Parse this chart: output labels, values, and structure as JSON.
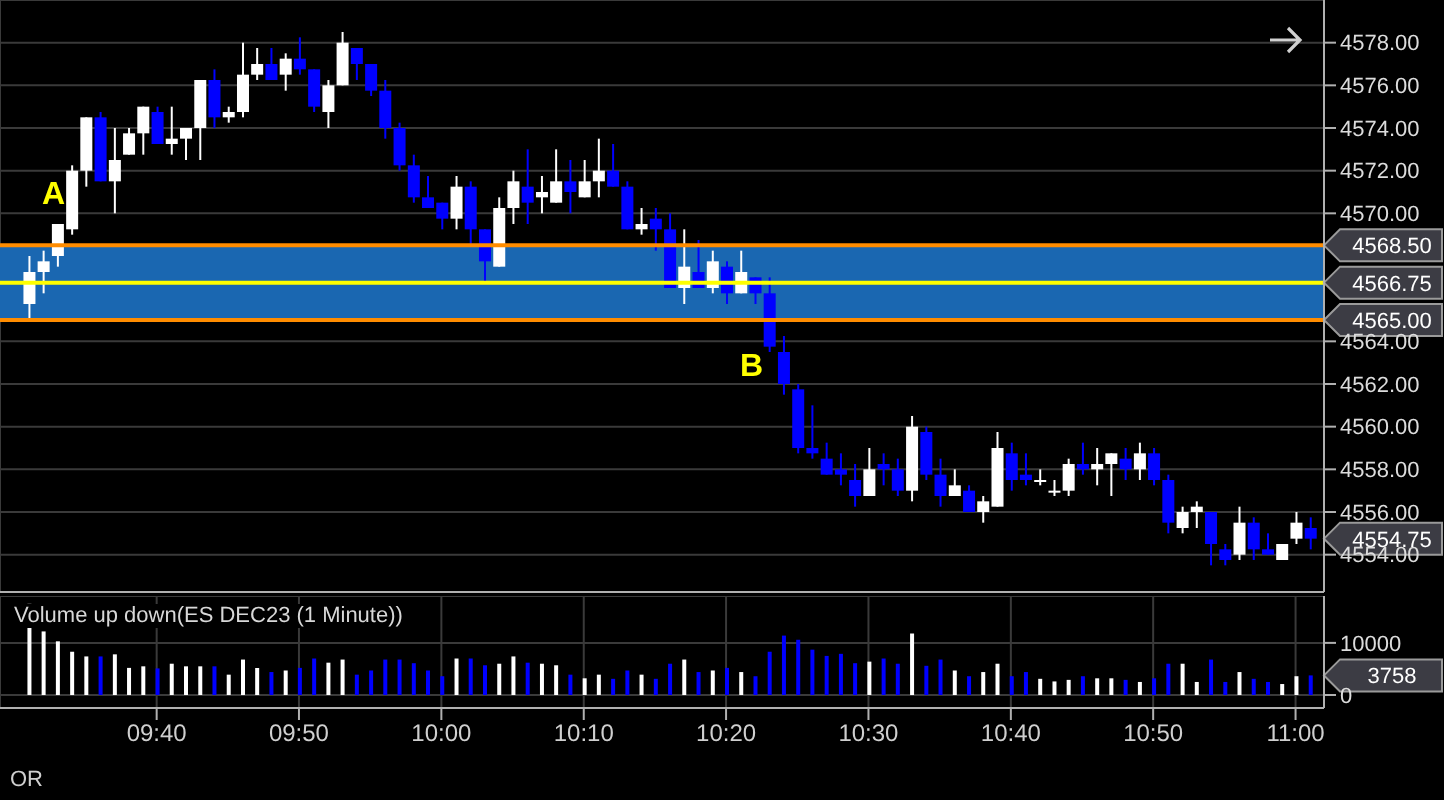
{
  "chart_data": [
    {
      "type": "candlestick",
      "tick_labels": "y",
      "grid": true,
      "x": [
        9.5167,
        9.5333,
        9.55,
        9.5667,
        9.5833,
        9.6,
        9.6167,
        9.6333,
        9.65,
        9.6667,
        9.6833,
        9.7,
        9.7167,
        9.7333,
        9.75,
        9.7667,
        9.7833,
        9.8,
        9.8167,
        9.8333,
        9.85,
        9.8667,
        9.8833,
        9.9,
        9.9167,
        9.9333,
        9.95,
        9.9667,
        9.9833,
        10,
        10.0167,
        10.0333,
        10.05,
        10.0667,
        10.0833,
        10.1,
        10.1167,
        10.1333,
        10.15,
        10.1667,
        10.1833,
        10.2,
        10.2167,
        10.2333,
        10.25,
        10.2667,
        10.2833,
        10.3,
        10.3167,
        10.3333,
        10.35,
        10.3667,
        10.3833,
        10.4,
        10.4167,
        10.4333,
        10.45,
        10.4667,
        10.4833,
        10.5,
        10.5167,
        10.5333,
        10.55,
        10.5667,
        10.5833,
        10.6,
        10.6167,
        10.6333,
        10.65,
        10.6667,
        10.6833,
        10.7,
        10.7167,
        10.7333,
        10.75,
        10.7667,
        10.7833,
        10.8,
        10.8167,
        10.8333,
        10.85,
        10.8667,
        10.8833,
        10.9,
        10.9167,
        10.9333,
        10.95,
        10.9667,
        10.9833,
        11,
        11.0167
      ],
      "ohlc": [
        [
          4565.75,
          4568,
          4565,
          4567.25
        ],
        [
          4567.25,
          4568.25,
          4566.25,
          4567.75
        ],
        [
          4568,
          4569.5,
          4567.5,
          4569.5
        ],
        [
          4569.25,
          4572.25,
          4569,
          4572
        ],
        [
          4572,
          4574.5,
          4571.25,
          4574.5
        ],
        [
          4574.5,
          4574.75,
          4571.5,
          4571.5
        ],
        [
          4571.5,
          4574,
          4570,
          4572.5
        ],
        [
          4572.75,
          4574,
          4572.75,
          4573.75
        ],
        [
          4573.75,
          4575,
          4572.75,
          4575
        ],
        [
          4574.75,
          4575,
          4573.25,
          4573.25
        ],
        [
          4573.25,
          4575,
          4572.75,
          4573.5
        ],
        [
          4573.5,
          4574,
          4572.5,
          4574
        ],
        [
          4574,
          4576.25,
          4572.5,
          4576.25
        ],
        [
          4576.25,
          4576.75,
          4574,
          4574.5
        ],
        [
          4574.5,
          4575,
          4574.25,
          4574.75
        ],
        [
          4574.75,
          4578,
          4574.5,
          4576.5
        ],
        [
          4576.5,
          4577.75,
          4576.25,
          4577
        ],
        [
          4577,
          4577.75,
          4576.25,
          4576.25
        ],
        [
          4576.5,
          4577.5,
          4575.75,
          4577.25
        ],
        [
          4577.25,
          4578.25,
          4576.5,
          4576.75
        ],
        [
          4576.75,
          4576.75,
          4574.75,
          4575
        ],
        [
          4574.75,
          4576.25,
          4574,
          4576
        ],
        [
          4576,
          4578.5,
          4576,
          4578
        ],
        [
          4577.75,
          4577.75,
          4576.25,
          4577
        ],
        [
          4577,
          4577,
          4575.5,
          4575.75
        ],
        [
          4575.75,
          4576.25,
          4573.5,
          4574
        ],
        [
          4574,
          4574.25,
          4572,
          4572.25
        ],
        [
          4572.25,
          4572.75,
          4570.5,
          4570.75
        ],
        [
          4570.75,
          4571.75,
          4570.25,
          4570.25
        ],
        [
          4570.5,
          4570.5,
          4569.25,
          4569.75
        ],
        [
          4569.75,
          4571.75,
          4569.25,
          4571.25
        ],
        [
          4571.25,
          4571.5,
          4568.5,
          4569.25
        ],
        [
          4569.25,
          4569.25,
          4566.75,
          4567.75
        ],
        [
          4567.5,
          4570.75,
          4567.5,
          4570.25
        ],
        [
          4570.25,
          4572,
          4569.5,
          4571.5
        ],
        [
          4571.25,
          4573,
          4569.5,
          4570.5
        ],
        [
          4570.75,
          4571.75,
          4570,
          4571
        ],
        [
          4570.5,
          4573,
          4570.5,
          4571.5
        ],
        [
          4571.5,
          4572.5,
          4570,
          4571
        ],
        [
          4570.75,
          4572.5,
          4570.75,
          4571.5
        ],
        [
          4571.5,
          4573.5,
          4570.75,
          4572
        ],
        [
          4572,
          4573.25,
          4571.25,
          4571.25
        ],
        [
          4571.25,
          4571.5,
          4569.25,
          4569.25
        ],
        [
          4569.25,
          4570.25,
          4569,
          4569.5
        ],
        [
          4569.75,
          4570.25,
          4568.25,
          4569.25
        ],
        [
          4569.25,
          4570,
          4566.5,
          4566.5
        ],
        [
          4566.5,
          4569.25,
          4565.75,
          4567.5
        ],
        [
          4567.25,
          4568.75,
          4566.5,
          4566.5
        ],
        [
          4566.5,
          4568.25,
          4566.25,
          4567.75
        ],
        [
          4567.5,
          4567.75,
          4565.75,
          4566.25
        ],
        [
          4566.25,
          4568.25,
          4566.25,
          4567.25
        ],
        [
          4567,
          4567,
          4565.75,
          4566.25
        ],
        [
          4566.25,
          4567,
          4563.5,
          4563.75
        ],
        [
          4563.5,
          4564.25,
          4561.5,
          4562
        ],
        [
          4561.75,
          4562,
          4558.75,
          4559
        ],
        [
          4559,
          4561,
          4558.5,
          4558.75
        ],
        [
          4558.5,
          4559.25,
          4557.75,
          4557.75
        ],
        [
          4558,
          4558.75,
          4557.25,
          4557.75
        ],
        [
          4557.5,
          4558.25,
          4556.25,
          4556.75
        ],
        [
          4556.75,
          4559,
          4556.75,
          4558
        ],
        [
          4558.25,
          4558.75,
          4557.25,
          4558
        ],
        [
          4558,
          4558.5,
          4556.75,
          4557
        ],
        [
          4557,
          4560.5,
          4556.5,
          4560
        ],
        [
          4559.75,
          4560,
          4557.5,
          4557.75
        ],
        [
          4557.75,
          4558.5,
          4556.25,
          4556.75
        ],
        [
          4556.75,
          4558,
          4556.75,
          4557.25
        ],
        [
          4557,
          4557.25,
          4556,
          4556
        ],
        [
          4556,
          4556.75,
          4555.5,
          4556.5
        ],
        [
          4556.25,
          4559.75,
          4556.25,
          4559
        ],
        [
          4558.75,
          4559.25,
          4557,
          4557.5
        ],
        [
          4557.75,
          4558.75,
          4557.25,
          4557.5
        ],
        [
          4557.5,
          4558,
          4557.25,
          4557.5
        ],
        [
          4557,
          4557.5,
          4556.75,
          4557
        ],
        [
          4557,
          4558.5,
          4556.75,
          4558.25
        ],
        [
          4558.25,
          4559.25,
          4557.75,
          4558
        ],
        [
          4558,
          4559,
          4557.25,
          4558.25
        ],
        [
          4558.25,
          4558.75,
          4556.75,
          4558.75
        ],
        [
          4558.5,
          4559,
          4557.5,
          4558
        ],
        [
          4558,
          4559.25,
          4557.5,
          4558.75
        ],
        [
          4558.75,
          4559,
          4557.25,
          4557.5
        ],
        [
          4557.5,
          4557.75,
          4555,
          4555.5
        ],
        [
          4555.25,
          4556.25,
          4555,
          4556
        ],
        [
          4556,
          4556.5,
          4555.25,
          4556.25
        ],
        [
          4556,
          4556,
          4553.5,
          4554.5
        ],
        [
          4554.25,
          4554.5,
          4553.5,
          4553.75
        ],
        [
          4554,
          4556.25,
          4553.75,
          4555.5
        ],
        [
          4555.5,
          4555.75,
          4553.75,
          4554.25
        ],
        [
          4554.25,
          4555,
          4554,
          4554
        ],
        [
          4553.75,
          4554.5,
          4553.75,
          4554.5
        ],
        [
          4554.75,
          4556,
          4554.5,
          4555.5
        ],
        [
          4555.25,
          4555.75,
          4554.25,
          4554.75
        ]
      ],
      "colors": [
        "#ffffff",
        "#ffffff",
        "#ffffff",
        "#ffffff",
        "#ffffff",
        "#0000ff",
        "#ffffff",
        "#ffffff",
        "#ffffff",
        "#0000ff",
        "#ffffff",
        "#ffffff",
        "#ffffff",
        "#0000ff",
        "#ffffff",
        "#ffffff",
        "#ffffff",
        "#0000ff",
        "#ffffff",
        "#0000ff",
        "#0000ff",
        "#ffffff",
        "#ffffff",
        "#0000ff",
        "#0000ff",
        "#0000ff",
        "#0000ff",
        "#0000ff",
        "#0000ff",
        "#0000ff",
        "#ffffff",
        "#0000ff",
        "#0000ff",
        "#ffffff",
        "#ffffff",
        "#0000ff",
        "#ffffff",
        "#ffffff",
        "#0000ff",
        "#ffffff",
        "#ffffff",
        "#0000ff",
        "#0000ff",
        "#ffffff",
        "#0000ff",
        "#0000ff",
        "#ffffff",
        "#0000ff",
        "#ffffff",
        "#0000ff",
        "#ffffff",
        "#0000ff",
        "#0000ff",
        "#0000ff",
        "#0000ff",
        "#0000ff",
        "#0000ff",
        "#0000ff",
        "#0000ff",
        "#ffffff",
        "#0000ff",
        "#0000ff",
        "#ffffff",
        "#0000ff",
        "#0000ff",
        "#ffffff",
        "#0000ff",
        "#ffffff",
        "#ffffff",
        "#0000ff",
        "#0000ff",
        "#ffffff",
        "#ffffff",
        "#ffffff",
        "#0000ff",
        "#ffffff",
        "#ffffff",
        "#0000ff",
        "#ffffff",
        "#0000ff",
        "#0000ff",
        "#ffffff",
        "#ffffff",
        "#0000ff",
        "#0000ff",
        "#ffffff",
        "#0000ff",
        "#0000ff",
        "#ffffff",
        "#ffffff",
        "#0000ff"
      ],
      "xlim": [
        9.4833,
        11.0333
      ],
      "xticks": [
        {
          "value": 9.6667,
          "label": null
        },
        {
          "value": 9.8333,
          "label": null
        },
        {
          "value": 10,
          "label": null
        },
        {
          "value": 10.1667,
          "label": null
        },
        {
          "value": 10.3333,
          "label": null
        },
        {
          "value": 10.5,
          "label": null
        },
        {
          "value": 10.6667,
          "label": null
        },
        {
          "value": 10.8333,
          "label": null
        },
        {
          "value": 11,
          "label": null
        }
      ],
      "ylim": [
        4552.25,
        4580
      ],
      "yticks": [
        {
          "value": 4554,
          "label": "4554.00"
        },
        {
          "value": 4556,
          "label": "4556.00"
        },
        {
          "value": 4558,
          "label": "4558.00"
        },
        {
          "value": 4560,
          "label": "4560.00"
        },
        {
          "value": 4562,
          "label": "4562.00"
        },
        {
          "value": 4564,
          "label": "4564.00"
        },
        {
          "value": 4570,
          "label": "4570.00"
        },
        {
          "value": 4572,
          "label": "4572.00"
        },
        {
          "value": 4574,
          "label": "4574.00"
        },
        {
          "value": 4576,
          "label": "4576.00"
        },
        {
          "value": 4578,
          "label": "4578.00"
        }
      ],
      "bands": [
        {
          "axis": "y",
          "from": 4565,
          "to": 4568.5,
          "color": "#1a67b1"
        }
      ],
      "ref_lines": [
        {
          "axis": "y",
          "value": 4568.5,
          "label": "4568.50",
          "color": "#ff8c00"
        },
        {
          "axis": "y",
          "value": 4566.75,
          "label": "4566.75",
          "color": "#ffff00"
        },
        {
          "axis": "y",
          "value": 4565,
          "label": "4565.00",
          "color": "#ff8c00"
        }
      ],
      "annotations": [
        "A",
        "B",
        "4554.75"
      ]
    },
    {
      "type": "bar",
      "title": "Volume up down(ES DEC23 (1 Minute))",
      "grid": true,
      "x": [
        9.5167,
        9.5333,
        9.55,
        9.5667,
        9.5833,
        9.6,
        9.6167,
        9.6333,
        9.65,
        9.6667,
        9.6833,
        9.7,
        9.7167,
        9.7333,
        9.75,
        9.7667,
        9.7833,
        9.8,
        9.8167,
        9.8333,
        9.85,
        9.8667,
        9.8833,
        9.9,
        9.9167,
        9.9333,
        9.95,
        9.9667,
        9.9833,
        10,
        10.0167,
        10.0333,
        10.05,
        10.0667,
        10.0833,
        10.1,
        10.1167,
        10.1333,
        10.15,
        10.1667,
        10.1833,
        10.2,
        10.2167,
        10.2333,
        10.25,
        10.2667,
        10.2833,
        10.3,
        10.3167,
        10.3333,
        10.35,
        10.3667,
        10.3833,
        10.4,
        10.4167,
        10.4333,
        10.45,
        10.4667,
        10.4833,
        10.5,
        10.5167,
        10.5333,
        10.55,
        10.5667,
        10.5833,
        10.6,
        10.6167,
        10.6333,
        10.65,
        10.6667,
        10.6833,
        10.7,
        10.7167,
        10.7333,
        10.75,
        10.7667,
        10.7833,
        10.8,
        10.8167,
        10.8333,
        10.85,
        10.8667,
        10.8833,
        10.9,
        10.9167,
        10.9333,
        10.95,
        10.9667,
        10.9833,
        11,
        11.0167
      ],
      "values": [
        17500,
        12200,
        10300,
        8300,
        7400,
        7400,
        7800,
        5200,
        5500,
        5100,
        6000,
        5500,
        5500,
        5500,
        3900,
        6800,
        5200,
        4400,
        4700,
        5200,
        7000,
        6200,
        6800,
        3900,
        4700,
        6800,
        6800,
        6100,
        4700,
        3600,
        7000,
        7000,
        5700,
        6000,
        7400,
        6200,
        6000,
        5700,
        3900,
        3200,
        3900,
        3100,
        4700,
        3900,
        3100,
        6000,
        6800,
        4400,
        4700,
        5200,
        4400,
        3600,
        8300,
        11400,
        10600,
        8700,
        7500,
        7900,
        6100,
        6400,
        7000,
        6000,
        11800,
        5600,
        6800,
        4700,
        3600,
        4400,
        6000,
        3600,
        4400,
        3100,
        2600,
        2900,
        3600,
        3200,
        3200,
        2900,
        2500,
        3200,
        6000,
        6000,
        2500,
        6800,
        2500,
        4400,
        3100,
        2500,
        2100,
        3600,
        3758
      ],
      "colors": [
        "#ffffff",
        "#ffffff",
        "#ffffff",
        "#ffffff",
        "#ffffff",
        "#0000ff",
        "#ffffff",
        "#ffffff",
        "#ffffff",
        "#0000ff",
        "#ffffff",
        "#ffffff",
        "#ffffff",
        "#0000ff",
        "#ffffff",
        "#ffffff",
        "#ffffff",
        "#0000ff",
        "#ffffff",
        "#0000ff",
        "#0000ff",
        "#ffffff",
        "#ffffff",
        "#0000ff",
        "#0000ff",
        "#0000ff",
        "#0000ff",
        "#0000ff",
        "#0000ff",
        "#0000ff",
        "#ffffff",
        "#0000ff",
        "#0000ff",
        "#ffffff",
        "#ffffff",
        "#0000ff",
        "#ffffff",
        "#ffffff",
        "#0000ff",
        "#ffffff",
        "#ffffff",
        "#0000ff",
        "#0000ff",
        "#ffffff",
        "#0000ff",
        "#0000ff",
        "#ffffff",
        "#0000ff",
        "#ffffff",
        "#0000ff",
        "#ffffff",
        "#0000ff",
        "#0000ff",
        "#0000ff",
        "#0000ff",
        "#0000ff",
        "#0000ff",
        "#0000ff",
        "#0000ff",
        "#ffffff",
        "#0000ff",
        "#0000ff",
        "#ffffff",
        "#0000ff",
        "#0000ff",
        "#ffffff",
        "#0000ff",
        "#ffffff",
        "#ffffff",
        "#0000ff",
        "#0000ff",
        "#ffffff",
        "#ffffff",
        "#ffffff",
        "#0000ff",
        "#ffffff",
        "#ffffff",
        "#0000ff",
        "#ffffff",
        "#0000ff",
        "#0000ff",
        "#ffffff",
        "#ffffff",
        "#0000ff",
        "#0000ff",
        "#ffffff",
        "#0000ff",
        "#0000ff",
        "#ffffff",
        "#ffffff",
        "#0000ff"
      ],
      "xlim": [
        9.4833,
        11.0333
      ],
      "xticks": [
        {
          "value": 9.6667,
          "label": "09:40"
        },
        {
          "value": 9.8333,
          "label": "09:50"
        },
        {
          "value": 10,
          "label": "10:00"
        },
        {
          "value": 10.1667,
          "label": "10:10"
        },
        {
          "value": 10.3333,
          "label": "10:20"
        },
        {
          "value": 10.5,
          "label": "10:30"
        },
        {
          "value": 10.6667,
          "label": "10:40"
        },
        {
          "value": 10.8333,
          "label": "10:50"
        },
        {
          "value": 11,
          "label": "11:00"
        }
      ],
      "ylim": [
        -2500,
        19000
      ],
      "yticks": [
        0,
        10000
      ],
      "annotations": [
        "3758",
        "OR"
      ]
    }
  ]
}
